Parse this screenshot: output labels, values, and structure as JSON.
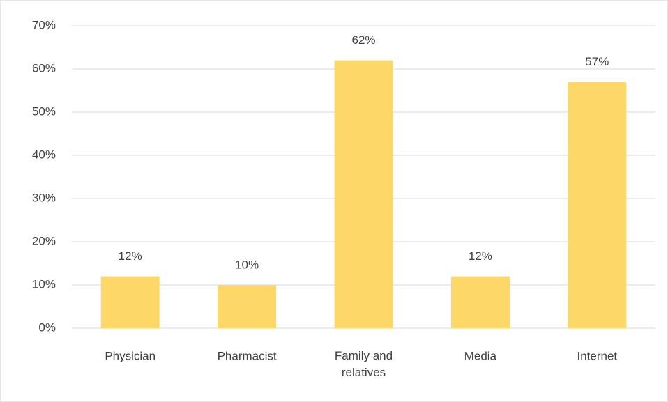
{
  "chart_data": {
    "type": "bar",
    "categories": [
      "Physician",
      "Pharmacist",
      "Family and relatives",
      "Media",
      "Internet"
    ],
    "values": [
      12,
      10,
      62,
      12,
      57
    ],
    "value_labels": [
      "12%",
      "10%",
      "62%",
      "12%",
      "57%"
    ],
    "color": "#fdd868",
    "ylim": [
      0,
      70
    ],
    "yticks": [
      {
        "value": 0,
        "label": "0%"
      },
      {
        "value": 10,
        "label": "10%"
      },
      {
        "value": 20,
        "label": "20%"
      },
      {
        "value": 30,
        "label": "30%"
      },
      {
        "value": 40,
        "label": "40%"
      },
      {
        "value": 50,
        "label": "50%"
      },
      {
        "value": 60,
        "label": "60%"
      },
      {
        "value": 70,
        "label": "70%"
      }
    ],
    "grid": true
  }
}
